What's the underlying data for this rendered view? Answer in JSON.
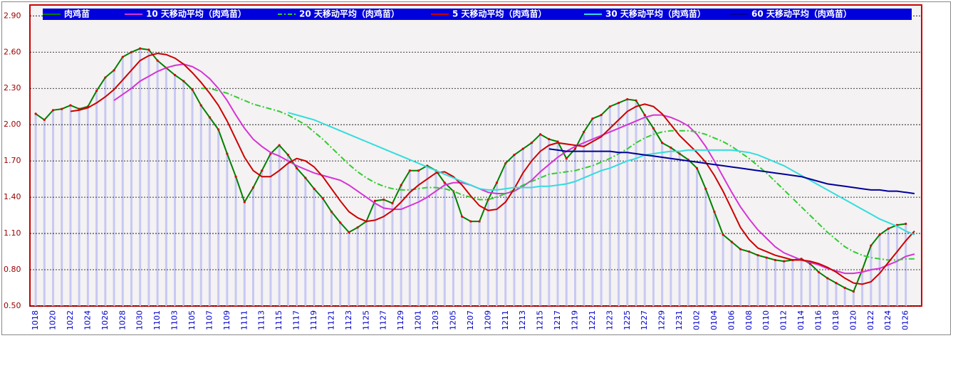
{
  "chart_data": {
    "type": "line",
    "legend": "top",
    "grid": true,
    "categories": [
      "1018",
      null,
      "1020",
      null,
      "1022",
      null,
      "1024",
      null,
      "1026",
      null,
      "1028",
      null,
      "1030",
      null,
      "1101",
      null,
      "1103",
      null,
      "1105",
      null,
      "1107",
      null,
      "1109",
      null,
      "1111",
      null,
      "1113",
      null,
      "1115",
      null,
      "1117",
      null,
      "1119",
      null,
      "1121",
      null,
      "1123",
      null,
      "1125",
      null,
      "1127",
      null,
      "1129",
      null,
      "1201",
      null,
      "1203",
      null,
      "1205",
      null,
      "1207",
      null,
      "1209",
      null,
      "1211",
      null,
      "1213",
      null,
      "1215",
      null,
      "1217",
      null,
      "1219",
      null,
      "1221",
      null,
      "1223",
      null,
      "1225",
      null,
      "1227",
      null,
      "1229",
      null,
      "1231",
      null,
      "0102",
      null,
      "0104",
      null,
      "0106",
      null,
      "0108",
      null,
      "0110",
      null,
      "0112",
      null,
      "0114",
      null,
      "0116",
      null,
      "0118",
      null,
      "0120",
      null,
      "0122",
      null,
      "0124",
      null,
      "0126",
      null
    ],
    "ylim": [
      0.5,
      2.99
    ],
    "yticks": [
      {
        "value": 0.5,
        "label": "0.50"
      },
      {
        "value": 0.8,
        "label": "0.80"
      },
      {
        "value": 1.1,
        "label": "1.10"
      },
      {
        "value": 1.4,
        "label": "1.40"
      },
      {
        "value": 1.7,
        "label": "1.70"
      },
      {
        "value": 2.0,
        "label": "2.00"
      },
      {
        "value": 2.3,
        "label": "2.30"
      },
      {
        "value": 2.6,
        "label": "2.60"
      },
      {
        "value": 2.9,
        "label": "2.90"
      }
    ],
    "series": [
      {
        "name": "肉鸡苗",
        "color": "#008000",
        "marker_color": "#e00000",
        "values": [
          2.09,
          2.04,
          2.12,
          2.13,
          2.16,
          2.13,
          2.15,
          2.28,
          2.39,
          2.45,
          2.56,
          2.6,
          2.63,
          2.62,
          2.53,
          2.47,
          2.41,
          2.36,
          2.29,
          2.16,
          2.06,
          1.96,
          1.76,
          1.57,
          1.36,
          1.48,
          1.62,
          1.76,
          1.83,
          1.75,
          1.64,
          1.56,
          1.47,
          1.39,
          1.28,
          1.19,
          1.11,
          1.15,
          1.2,
          1.37,
          1.38,
          1.35,
          1.5,
          1.62,
          1.62,
          1.66,
          1.62,
          1.52,
          1.45,
          1.24,
          1.2,
          1.2,
          1.38,
          1.52,
          1.68,
          1.75,
          1.8,
          1.85,
          1.92,
          1.88,
          1.86,
          1.72,
          1.8,
          1.94,
          2.05,
          2.08,
          2.15,
          2.18,
          2.21,
          2.2,
          2.08,
          1.97,
          1.85,
          1.81,
          1.76,
          1.71,
          1.64,
          1.47,
          1.28,
          1.09,
          1.03,
          0.97,
          0.95,
          0.92,
          0.9,
          0.88,
          0.87,
          0.88,
          0.89,
          0.85,
          0.78,
          0.73,
          0.69,
          0.65,
          0.62,
          0.8,
          1.0,
          1.09,
          1.14,
          1.17,
          1.18,
          null
        ]
      },
      {
        "name": "10 天移动平均（肉鸡苗）",
        "color": "#d633d6",
        "values": [
          null,
          null,
          null,
          null,
          null,
          null,
          null,
          null,
          null,
          2.2,
          2.25,
          2.3,
          2.36,
          2.4,
          2.44,
          2.47,
          2.49,
          2.5,
          2.48,
          2.44,
          2.38,
          2.3,
          2.2,
          2.08,
          1.97,
          1.88,
          1.82,
          1.77,
          1.74,
          1.7,
          1.66,
          1.63,
          1.6,
          1.58,
          1.56,
          1.54,
          1.5,
          1.45,
          1.4,
          1.35,
          1.31,
          1.3,
          1.3,
          1.33,
          1.36,
          1.4,
          1.45,
          1.5,
          1.52,
          1.52,
          1.5,
          1.47,
          1.44,
          1.43,
          1.43,
          1.45,
          1.49,
          1.54,
          1.61,
          1.67,
          1.73,
          1.78,
          1.82,
          1.85,
          1.88,
          1.91,
          1.94,
          1.97,
          2.0,
          2.03,
          2.06,
          2.08,
          2.08,
          2.06,
          2.03,
          1.99,
          1.92,
          1.82,
          1.7,
          1.57,
          1.44,
          1.32,
          1.22,
          1.13,
          1.06,
          0.99,
          0.94,
          0.91,
          0.88,
          0.86,
          0.84,
          0.81,
          0.79,
          0.77,
          0.77,
          0.78,
          0.8,
          0.81,
          0.84,
          0.87,
          0.91,
          0.93
        ]
      },
      {
        "name": "20 天移动平均（肉鸡苗）",
        "color": "#33cc33",
        "dashed": true,
        "values": [
          null,
          null,
          null,
          null,
          null,
          null,
          null,
          null,
          null,
          null,
          null,
          null,
          null,
          null,
          null,
          null,
          null,
          null,
          null,
          2.3,
          2.3,
          2.28,
          2.26,
          2.23,
          2.2,
          2.17,
          2.15,
          2.13,
          2.11,
          2.08,
          2.04,
          2.0,
          1.94,
          1.88,
          1.81,
          1.74,
          1.67,
          1.61,
          1.56,
          1.52,
          1.49,
          1.47,
          1.46,
          1.46,
          1.47,
          1.48,
          1.48,
          1.47,
          1.45,
          1.42,
          1.4,
          1.38,
          1.38,
          1.4,
          1.43,
          1.46,
          1.5,
          1.53,
          1.56,
          1.59,
          1.6,
          1.61,
          1.62,
          1.64,
          1.66,
          1.69,
          1.72,
          1.76,
          1.8,
          1.85,
          1.89,
          1.92,
          1.94,
          1.95,
          1.95,
          1.95,
          1.94,
          1.92,
          1.89,
          1.86,
          1.82,
          1.77,
          1.72,
          1.66,
          1.6,
          1.53,
          1.46,
          1.39,
          1.32,
          1.25,
          1.18,
          1.11,
          1.05,
          0.99,
          0.95,
          0.92,
          0.9,
          0.89,
          0.88,
          0.88,
          0.89,
          0.89
        ]
      },
      {
        "name": "5 天移动平均（肉鸡苗）",
        "color": "#cc0000",
        "values": [
          null,
          null,
          null,
          null,
          2.11,
          2.12,
          2.14,
          2.18,
          2.23,
          2.29,
          2.37,
          2.45,
          2.53,
          2.57,
          2.59,
          2.58,
          2.55,
          2.5,
          2.43,
          2.35,
          2.26,
          2.16,
          2.03,
          1.88,
          1.73,
          1.62,
          1.57,
          1.57,
          1.62,
          1.68,
          1.72,
          1.7,
          1.65,
          1.57,
          1.47,
          1.37,
          1.28,
          1.23,
          1.2,
          1.21,
          1.24,
          1.29,
          1.36,
          1.44,
          1.5,
          1.55,
          1.6,
          1.61,
          1.57,
          1.5,
          1.41,
          1.33,
          1.29,
          1.3,
          1.36,
          1.47,
          1.6,
          1.7,
          1.78,
          1.83,
          1.85,
          1.84,
          1.83,
          1.82,
          1.86,
          1.9,
          1.97,
          2.04,
          2.11,
          2.15,
          2.17,
          2.15,
          2.09,
          2.0,
          1.91,
          1.84,
          1.77,
          1.69,
          1.58,
          1.45,
          1.3,
          1.15,
          1.05,
          0.98,
          0.95,
          0.92,
          0.9,
          0.88,
          0.88,
          0.87,
          0.85,
          0.82,
          0.78,
          0.73,
          0.69,
          0.68,
          0.7,
          0.77,
          0.86,
          0.95,
          1.04,
          1.12
        ]
      },
      {
        "name": "30 天移动平均（肉鸡苗）",
        "color": "#33dddd",
        "values": [
          null,
          null,
          null,
          null,
          null,
          null,
          null,
          null,
          null,
          null,
          null,
          null,
          null,
          null,
          null,
          null,
          null,
          null,
          null,
          null,
          null,
          null,
          null,
          null,
          null,
          null,
          null,
          null,
          null,
          2.1,
          2.08,
          2.06,
          2.04,
          2.01,
          1.98,
          1.95,
          1.92,
          1.89,
          1.86,
          1.83,
          1.8,
          1.77,
          1.74,
          1.71,
          1.68,
          1.65,
          1.62,
          1.59,
          1.56,
          1.53,
          1.5,
          1.47,
          1.46,
          1.46,
          1.47,
          1.48,
          1.48,
          1.48,
          1.49,
          1.49,
          1.5,
          1.51,
          1.53,
          1.56,
          1.59,
          1.62,
          1.64,
          1.67,
          1.7,
          1.72,
          1.75,
          1.76,
          1.77,
          1.78,
          1.78,
          1.79,
          1.79,
          1.79,
          1.79,
          1.79,
          1.79,
          1.78,
          1.77,
          1.75,
          1.72,
          1.69,
          1.66,
          1.62,
          1.58,
          1.54,
          1.5,
          1.46,
          1.42,
          1.38,
          1.34,
          1.3,
          1.26,
          1.22,
          1.19,
          1.16,
          1.12,
          1.09
        ]
      },
      {
        "name": "60 天移动平均（肉鸡苗）",
        "color": "#000099",
        "values": [
          null,
          null,
          null,
          null,
          null,
          null,
          null,
          null,
          null,
          null,
          null,
          null,
          null,
          null,
          null,
          null,
          null,
          null,
          null,
          null,
          null,
          null,
          null,
          null,
          null,
          null,
          null,
          null,
          null,
          null,
          null,
          null,
          null,
          null,
          null,
          null,
          null,
          null,
          null,
          null,
          null,
          null,
          null,
          null,
          null,
          null,
          null,
          null,
          null,
          null,
          null,
          null,
          null,
          null,
          null,
          null,
          null,
          null,
          null,
          1.8,
          1.79,
          1.78,
          1.78,
          1.78,
          1.78,
          1.78,
          1.78,
          1.77,
          1.77,
          1.76,
          1.75,
          1.74,
          1.73,
          1.72,
          1.71,
          1.7,
          1.69,
          1.68,
          1.67,
          1.66,
          1.65,
          1.64,
          1.63,
          1.62,
          1.61,
          1.6,
          1.59,
          1.58,
          1.57,
          1.55,
          1.53,
          1.51,
          1.5,
          1.49,
          1.48,
          1.47,
          1.46,
          1.46,
          1.45,
          1.45,
          1.44,
          1.43
        ]
      }
    ]
  }
}
